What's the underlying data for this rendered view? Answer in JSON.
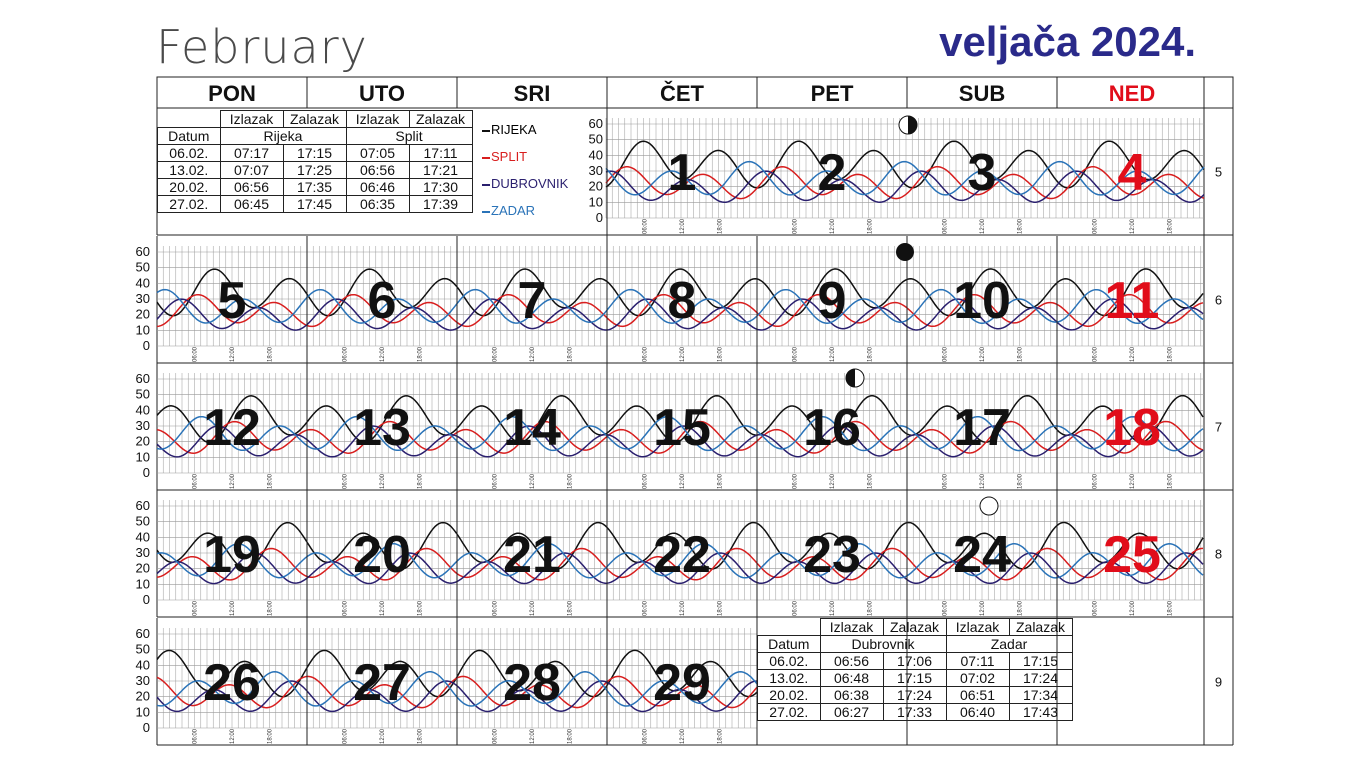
{
  "header": {
    "left_title": "February",
    "right_title": "veljača 2024."
  },
  "weekdays": [
    {
      "label": "PON",
      "color": "#111111"
    },
    {
      "label": "UTO",
      "color": "#111111"
    },
    {
      "label": "SRI",
      "color": "#111111"
    },
    {
      "label": "ČET",
      "color": "#111111"
    },
    {
      "label": "PET",
      "color": "#111111"
    },
    {
      "label": "SUB",
      "color": "#111111"
    },
    {
      "label": "NED",
      "color": "#e10d1a"
    }
  ],
  "week_numbers": [
    "5",
    "6",
    "7",
    "8",
    "9"
  ],
  "days": [
    {
      "day": "1",
      "row": 0,
      "col": 3
    },
    {
      "day": "2",
      "row": 0,
      "col": 4
    },
    {
      "day": "3",
      "row": 0,
      "col": 5
    },
    {
      "day": "4",
      "row": 0,
      "col": 6
    },
    {
      "day": "5",
      "row": 1,
      "col": 0
    },
    {
      "day": "6",
      "row": 1,
      "col": 1
    },
    {
      "day": "7",
      "row": 1,
      "col": 2
    },
    {
      "day": "8",
      "row": 1,
      "col": 3
    },
    {
      "day": "9",
      "row": 1,
      "col": 4
    },
    {
      "day": "10",
      "row": 1,
      "col": 5
    },
    {
      "day": "11",
      "row": 1,
      "col": 6
    },
    {
      "day": "12",
      "row": 2,
      "col": 0
    },
    {
      "day": "13",
      "row": 2,
      "col": 1
    },
    {
      "day": "14",
      "row": 2,
      "col": 2
    },
    {
      "day": "15",
      "row": 2,
      "col": 3
    },
    {
      "day": "16",
      "row": 2,
      "col": 4
    },
    {
      "day": "17",
      "row": 2,
      "col": 5
    },
    {
      "day": "18",
      "row": 2,
      "col": 6
    },
    {
      "day": "19",
      "row": 3,
      "col": 0
    },
    {
      "day": "20",
      "row": 3,
      "col": 1
    },
    {
      "day": "21",
      "row": 3,
      "col": 2
    },
    {
      "day": "22",
      "row": 3,
      "col": 3
    },
    {
      "day": "23",
      "row": 3,
      "col": 4
    },
    {
      "day": "24",
      "row": 3,
      "col": 5
    },
    {
      "day": "25",
      "row": 3,
      "col": 6
    },
    {
      "day": "26",
      "row": 4,
      "col": 0
    },
    {
      "day": "27",
      "row": 4,
      "col": 1
    },
    {
      "day": "28",
      "row": 4,
      "col": 2
    },
    {
      "day": "29",
      "row": 4,
      "col": 3
    }
  ],
  "moon_phases": [
    {
      "phase": "last-quarter",
      "day": "2"
    },
    {
      "phase": "new-moon",
      "day": "9"
    },
    {
      "phase": "first-quarter",
      "day": "16"
    },
    {
      "phase": "full-moon",
      "day": "24"
    }
  ],
  "sun_table_top": {
    "col_izlazak": "Izlazak",
    "col_zalazak": "Zalazak",
    "col_datum": "Datum",
    "city_a": "Rijeka",
    "city_b": "Split",
    "rows": [
      [
        "06.02.",
        "07:17",
        "17:15",
        "07:05",
        "17:11"
      ],
      [
        "13.02.",
        "07:07",
        "17:25",
        "06:56",
        "17:21"
      ],
      [
        "20.02.",
        "06:56",
        "17:35",
        "06:46",
        "17:30"
      ],
      [
        "27.02.",
        "06:45",
        "17:45",
        "06:35",
        "17:39"
      ]
    ]
  },
  "sun_table_bottom": {
    "col_izlazak": "Izlazak",
    "col_zalazak": "Zalazak",
    "col_datum": "Datum",
    "city_a": "Dubrovnik",
    "city_b": "Zadar",
    "rows": [
      [
        "06.02.",
        "06:56",
        "17:06",
        "07:11",
        "17:15"
      ],
      [
        "13.02.",
        "06:48",
        "17:15",
        "07:02",
        "17:24"
      ],
      [
        "20.02.",
        "06:38",
        "17:24",
        "06:51",
        "17:34"
      ],
      [
        "27.02.",
        "06:27",
        "17:33",
        "06:40",
        "17:43"
      ]
    ]
  },
  "chart_data": {
    "type": "line",
    "ylim": [
      0,
      60
    ],
    "y_ticks": [
      "0",
      "10",
      "20",
      "30",
      "40",
      "50",
      "60"
    ],
    "x_ticks_per_day": [
      "06:00",
      "12:00",
      "18:00"
    ],
    "series": [
      {
        "name": "RIJEKA",
        "color": "#111111",
        "baseline": 34,
        "amplitude": 16
      },
      {
        "name": "SPLIT",
        "color": "#d81e1e",
        "baseline": 22,
        "amplitude": 11
      },
      {
        "name": "DUBROVNIK",
        "color": "#2a1f6e",
        "baseline": 19,
        "amplitude": 11
      },
      {
        "name": "ZADAR",
        "color": "#2a73b8",
        "baseline": 24,
        "amplitude": 12
      }
    ]
  }
}
